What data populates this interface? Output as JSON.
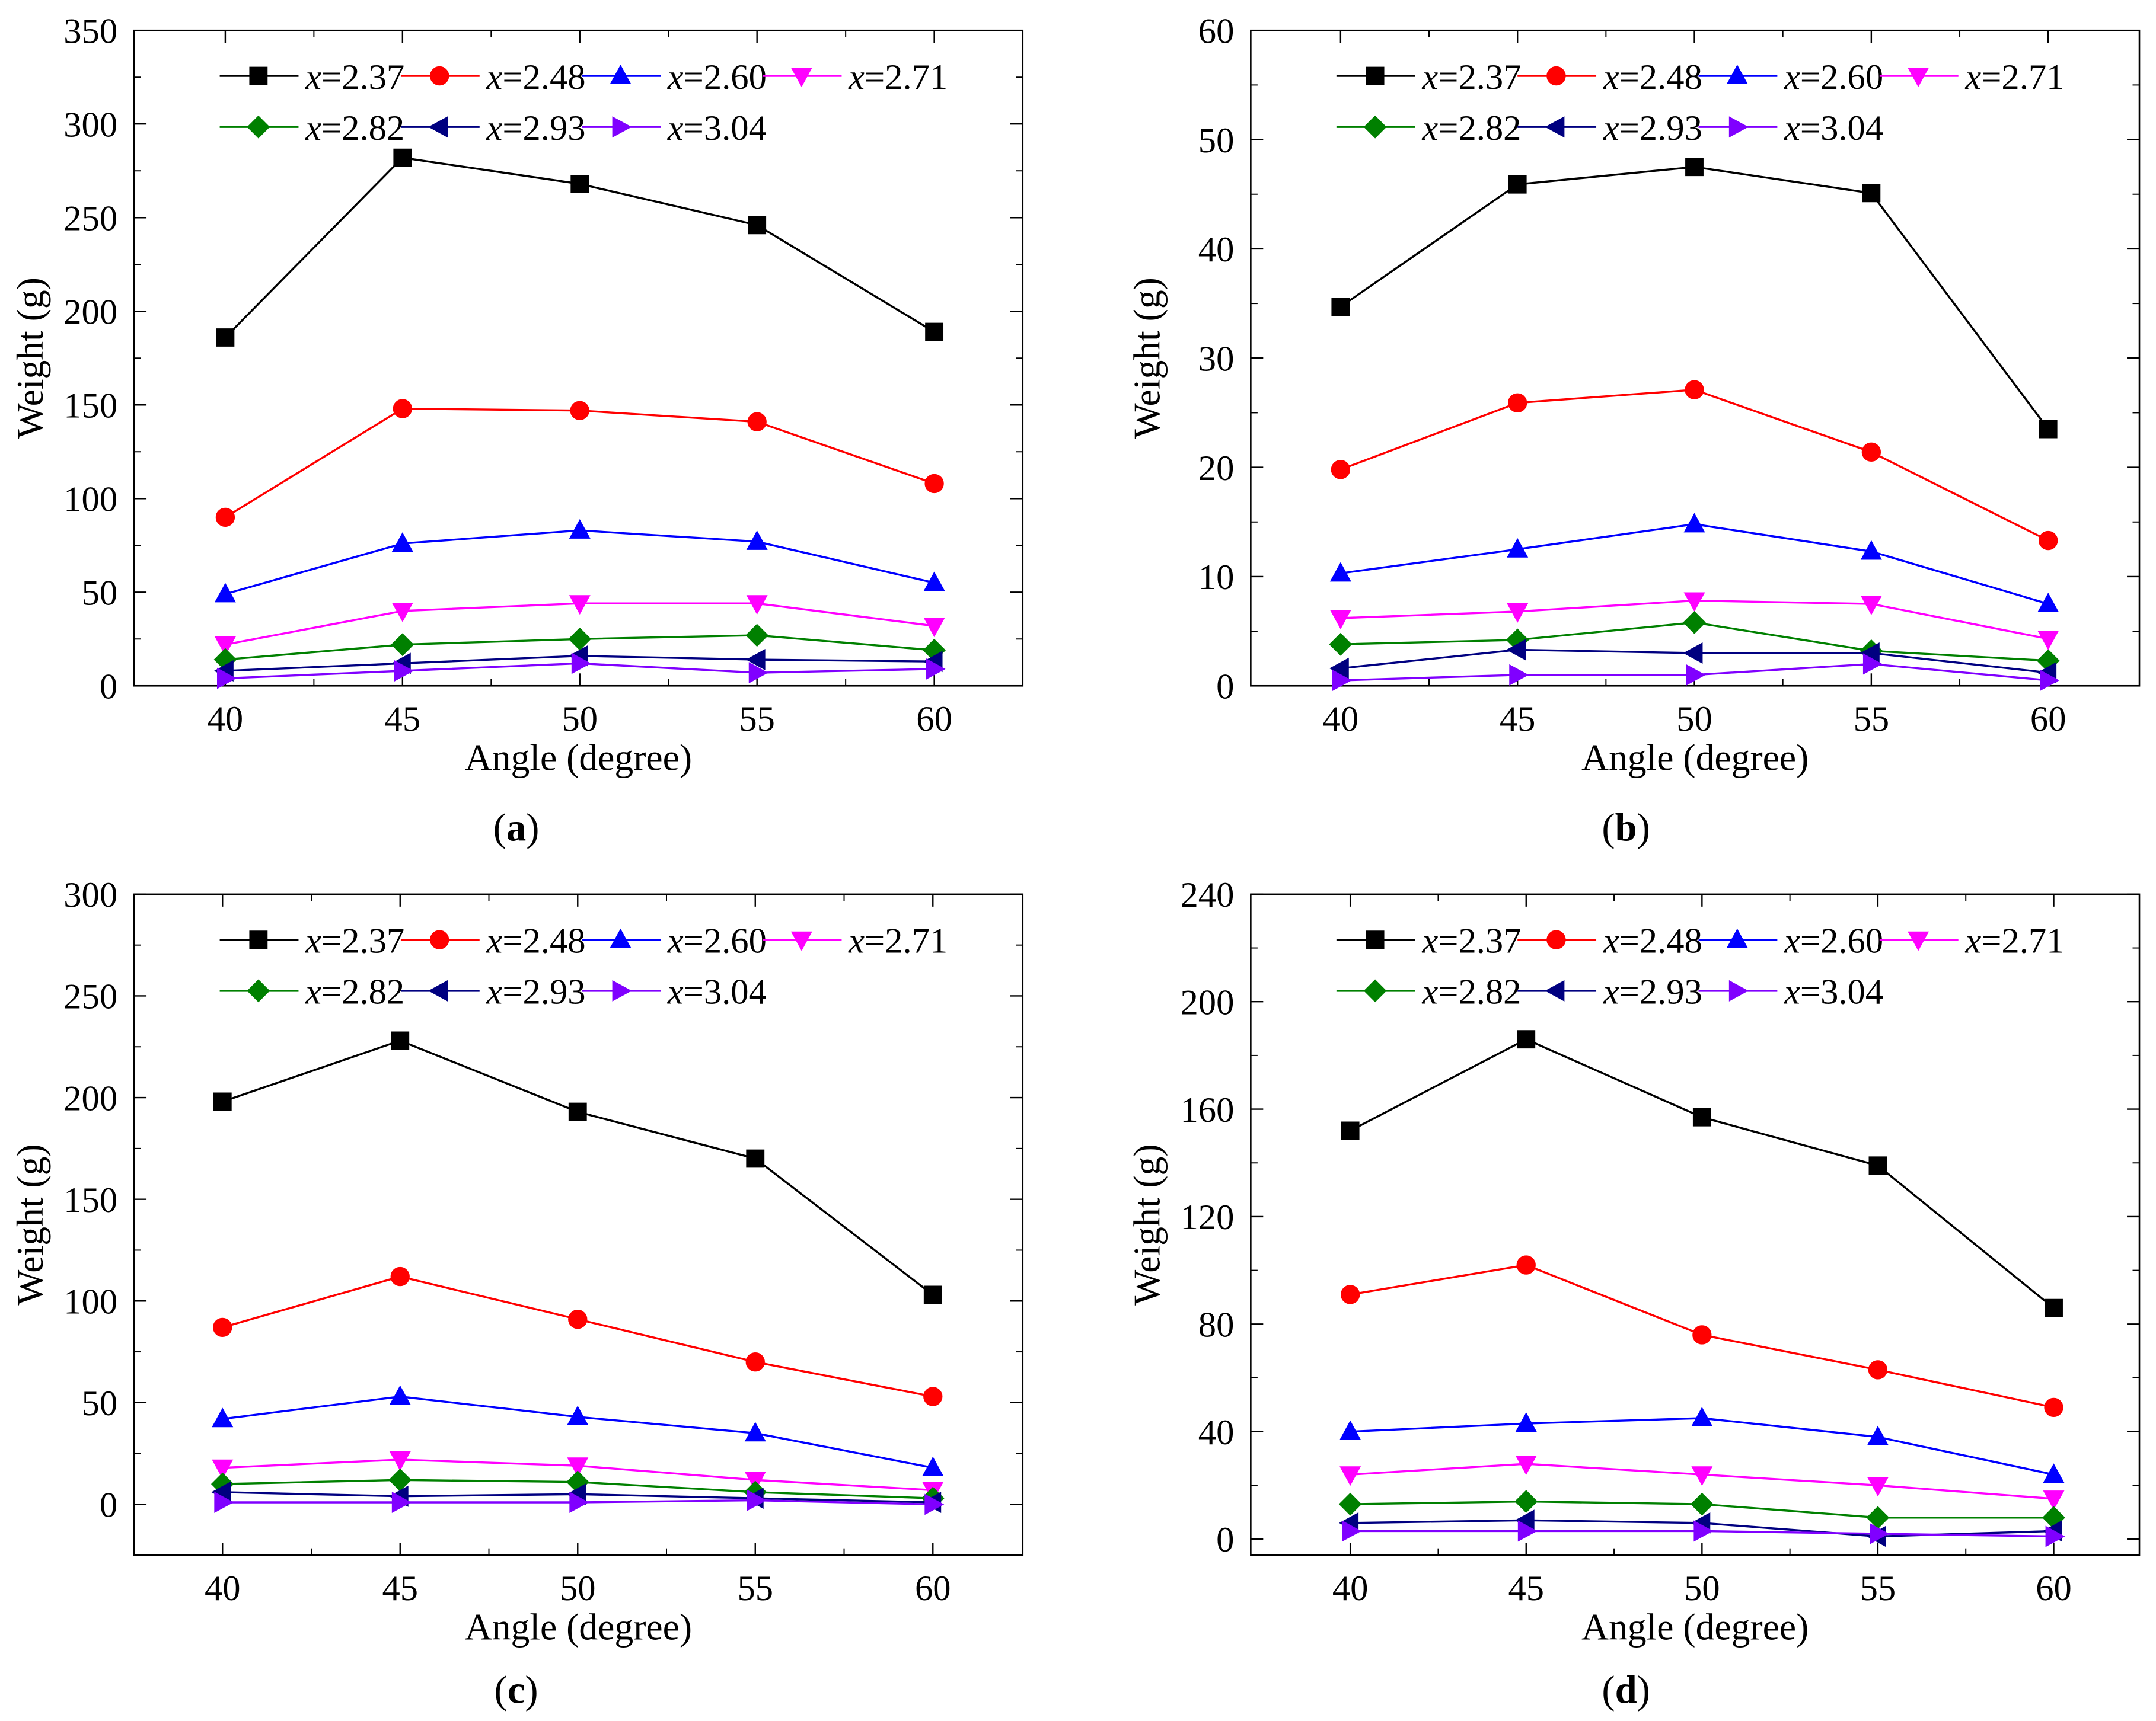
{
  "figure": {
    "legend_entries": [
      {
        "prefix": "x",
        "suffix": "=2.37",
        "color": "#000000",
        "marker": "square"
      },
      {
        "prefix": "x",
        "suffix": "=2.48",
        "color": "#ff0000",
        "marker": "circle"
      },
      {
        "prefix": "x",
        "suffix": "=2.60",
        "color": "#0000ff",
        "marker": "triangle-up"
      },
      {
        "prefix": "x",
        "suffix": "=2.71",
        "color": "#ff00ff",
        "marker": "triangle-down"
      },
      {
        "prefix": "x",
        "suffix": "=2.82",
        "color": "#008000",
        "marker": "diamond"
      },
      {
        "prefix": "x",
        "suffix": "=2.93",
        "color": "#000080",
        "marker": "triangle-left"
      },
      {
        "prefix": "x",
        "suffix": "=3.04",
        "color": "#8000ff",
        "marker": "triangle-right"
      }
    ]
  },
  "chart_data": [
    {
      "type": "line",
      "panel_label": "(a)",
      "xlabel": "Angle (degree)",
      "ylabel": "Weight (g)",
      "x": [
        40,
        45,
        50,
        55,
        60
      ],
      "xticks": [
        40,
        45,
        50,
        55,
        60
      ],
      "ylim": [
        0,
        350
      ],
      "yticks": [
        0,
        50,
        100,
        150,
        200,
        250,
        300,
        350
      ],
      "legend": "top, two rows",
      "series": [
        {
          "name": "x=2.37",
          "values": [
            186,
            282,
            268,
            246,
            189
          ]
        },
        {
          "name": "x=2.48",
          "values": [
            90,
            148,
            147,
            141,
            108
          ]
        },
        {
          "name": "x=2.60",
          "values": [
            49,
            76,
            83,
            77,
            55
          ]
        },
        {
          "name": "x=2.71",
          "values": [
            22,
            40,
            44,
            44,
            32
          ]
        },
        {
          "name": "x=2.82",
          "values": [
            14,
            22,
            25,
            27,
            19
          ]
        },
        {
          "name": "x=2.93",
          "values": [
            8,
            12,
            16,
            14,
            13
          ]
        },
        {
          "name": "x=3.04",
          "values": [
            4,
            8,
            12,
            7,
            9
          ]
        }
      ]
    },
    {
      "type": "line",
      "panel_label": "(b)",
      "xlabel": "Angle (degree)",
      "ylabel": "Weight (g)",
      "x": [
        40,
        45,
        50,
        55,
        60
      ],
      "xticks": [
        40,
        45,
        50,
        55,
        60
      ],
      "ylim": [
        0,
        60
      ],
      "yticks": [
        0,
        10,
        20,
        30,
        40,
        50,
        60
      ],
      "legend": "top, two rows",
      "series": [
        {
          "name": "x=2.37",
          "values": [
            34.7,
            45.9,
            47.5,
            45.1,
            23.5
          ]
        },
        {
          "name": "x=2.48",
          "values": [
            19.8,
            25.9,
            27.1,
            21.4,
            13.3
          ]
        },
        {
          "name": "x=2.60",
          "values": [
            10.3,
            12.5,
            14.8,
            12.3,
            7.5
          ]
        },
        {
          "name": "x=2.71",
          "values": [
            6.2,
            6.8,
            7.8,
            7.5,
            4.3
          ]
        },
        {
          "name": "x=2.82",
          "values": [
            3.8,
            4.2,
            5.8,
            3.2,
            2.3
          ]
        },
        {
          "name": "x=2.93",
          "values": [
            1.6,
            3.3,
            3.0,
            3.0,
            1.2
          ]
        },
        {
          "name": "x=3.04",
          "values": [
            0.5,
            1.0,
            1.0,
            2.0,
            0.5
          ]
        }
      ]
    },
    {
      "type": "line",
      "panel_label": "(c)",
      "xlabel": "Angle (degree)",
      "ylabel": "Weight (g)",
      "x": [
        40,
        45,
        50,
        55,
        60
      ],
      "xticks": [
        40,
        45,
        50,
        55,
        60
      ],
      "ylim": [
        -25,
        300
      ],
      "yticks": [
        0,
        50,
        100,
        150,
        200,
        250,
        300
      ],
      "legend": "top, two rows",
      "series": [
        {
          "name": "x=2.37",
          "values": [
            198,
            228,
            193,
            170,
            103
          ]
        },
        {
          "name": "x=2.48",
          "values": [
            87,
            112,
            91,
            70,
            53
          ]
        },
        {
          "name": "x=2.60",
          "values": [
            42,
            53,
            43,
            35,
            18
          ]
        },
        {
          "name": "x=2.71",
          "values": [
            18,
            22,
            19,
            12,
            7
          ]
        },
        {
          "name": "x=2.82",
          "values": [
            10,
            12,
            11,
            6,
            3
          ]
        },
        {
          "name": "x=2.93",
          "values": [
            6,
            4,
            5,
            3,
            1
          ]
        },
        {
          "name": "x=3.04",
          "values": [
            1,
            1,
            1,
            2,
            0
          ]
        }
      ]
    },
    {
      "type": "line",
      "panel_label": "(d)",
      "xlabel": "Angle (degree)",
      "ylabel": "Weight (g)",
      "x": [
        40,
        45,
        50,
        55,
        60
      ],
      "xticks": [
        40,
        45,
        50,
        55,
        60
      ],
      "ylim": [
        -6,
        240
      ],
      "yticks": [
        0,
        40,
        80,
        120,
        160,
        200,
        240
      ],
      "legend": "top, two rows",
      "series": [
        {
          "name": "x=2.37",
          "values": [
            152,
            186,
            157,
            139,
            86
          ]
        },
        {
          "name": "x=2.48",
          "values": [
            91,
            102,
            76,
            63,
            49
          ]
        },
        {
          "name": "x=2.60",
          "values": [
            40,
            43,
            45,
            38,
            24
          ]
        },
        {
          "name": "x=2.71",
          "values": [
            24,
            28,
            24,
            20,
            15
          ]
        },
        {
          "name": "x=2.82",
          "values": [
            13,
            14,
            13,
            8,
            8
          ]
        },
        {
          "name": "x=2.93",
          "values": [
            6,
            7,
            6,
            1,
            3
          ]
        },
        {
          "name": "x=3.04",
          "values": [
            3,
            3,
            3,
            2,
            1
          ]
        }
      ]
    }
  ]
}
